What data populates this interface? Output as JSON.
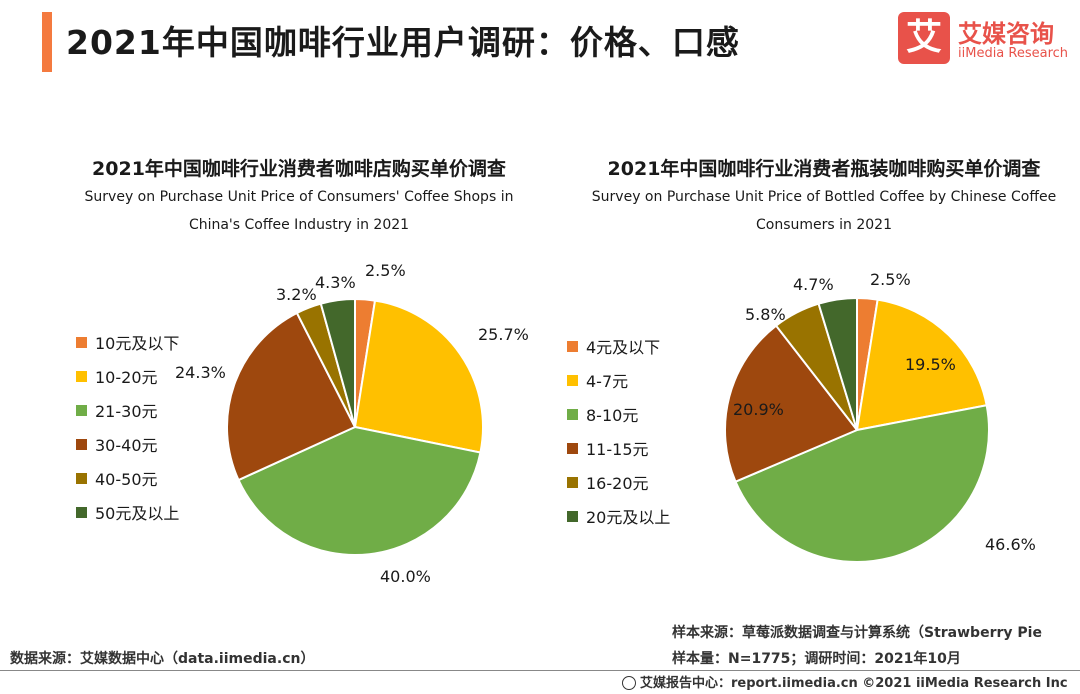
{
  "header": {
    "title": "2021年中国咖啡行业用户调研：价格、口感",
    "logo_mark": "艾",
    "logo_cn": "艾媒咨询",
    "logo_en": "iiMedia Research"
  },
  "colors": {
    "accent": "#f47a3f",
    "logo": "#e8524a",
    "pie": [
      "#ed7d31",
      "#ffc000",
      "#70ad47",
      "#9e480e",
      "#997300",
      "#43682b"
    ]
  },
  "footer": {
    "source_left": "数据来源：艾媒数据中心（data.iimedia.cn）",
    "sample_source": "样本来源：草莓派数据调查与计算系统（Strawberry Pie",
    "sample_size": "样本量：N=1775；调研时间：2021年10月",
    "report": "艾媒报告中心：report.iimedia.cn   ©2021  iiMedia Research Inc"
  },
  "chart_data": [
    {
      "type": "pie",
      "title": "2021年中国咖啡行业消费者咖啡店购买单价调查",
      "subtitle": "Survey on Purchase Unit Price of Consumers' Coffee Shops in China's Coffee Industry in 2021",
      "categories": [
        "10元及以下",
        "10-20元",
        "21-30元",
        "30-40元",
        "40-50元",
        "50元及以上"
      ],
      "values": [
        2.5,
        25.7,
        40.0,
        24.3,
        3.2,
        4.3
      ],
      "labels": [
        "2.5%",
        "25.7%",
        "40.0%",
        "24.3%",
        "3.2%",
        "4.3%"
      ],
      "legend_position": "left"
    },
    {
      "type": "pie",
      "title": "2021年中国咖啡行业消费者瓶装咖啡购买单价调查",
      "subtitle": "Survey on Purchase Unit Price of Bottled Coffee by Chinese Coffee Consumers in 2021",
      "categories": [
        "4元及以下",
        "4-7元",
        "8-10元",
        "11-15元",
        "16-20元",
        "20元及以上"
      ],
      "values": [
        2.5,
        19.5,
        46.6,
        20.9,
        5.8,
        4.7
      ],
      "labels": [
        "2.5%",
        "19.5%",
        "46.6%",
        "20.9%",
        "5.8%",
        "4.7%"
      ],
      "legend_position": "left"
    }
  ]
}
